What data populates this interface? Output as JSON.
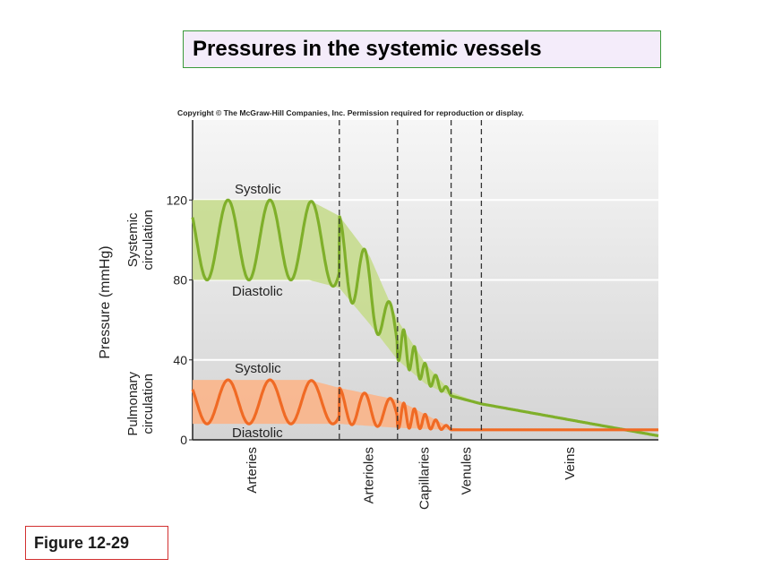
{
  "title": "Pressures in the systemic vessels",
  "figure_label": "Figure 12-29",
  "copyright": "Copyright © The McGraw-Hill Companies, Inc. Permission required for reproduction or display.",
  "chart_data": {
    "type": "line",
    "ylabel": "Pressure (mmHg)",
    "yticks": [
      0,
      40,
      80,
      120
    ],
    "ylim": [
      0,
      160
    ],
    "xlim": [
      0,
      100
    ],
    "grid": true,
    "regions": [
      {
        "label": "Arteries",
        "start": 0,
        "end": 31.5
      },
      {
        "label": "Arterioles",
        "start": 31.5,
        "end": 44
      },
      {
        "label": "Capillaries",
        "start": 44,
        "end": 55.5
      },
      {
        "label": "Venules",
        "start": 55.5,
        "end": 62
      },
      {
        "label": "Veins",
        "start": 62,
        "end": 100
      }
    ],
    "group_labels": {
      "systemic": "Systemic\ncirculation",
      "pulmonary": "Pulmonary\ncirculation"
    },
    "annotations": {
      "systemic_systolic": "Systolic",
      "systemic_diastolic": "Diastolic",
      "pulmonary_systolic": "Systolic",
      "pulmonary_diastolic": "Diastolic"
    },
    "colors": {
      "systemic_line": "#7faf2a",
      "systemic_band": "#c6dc8e",
      "pulmonary_line": "#f06a24",
      "pulmonary_band": "#fbb58a"
    },
    "series": [
      {
        "key": "systemic",
        "upper": [
          [
            0,
            120
          ],
          [
            25,
            120
          ],
          [
            31.5,
            112
          ],
          [
            38,
            92
          ],
          [
            44,
            60
          ],
          [
            50,
            38
          ],
          [
            55.5,
            24
          ],
          [
            62,
            18
          ],
          [
            100,
            2
          ]
        ],
        "lower": [
          [
            0,
            80
          ],
          [
            25,
            80
          ],
          [
            31.5,
            76
          ],
          [
            38,
            58
          ],
          [
            44,
            40
          ],
          [
            50,
            28
          ],
          [
            55.5,
            22
          ],
          [
            62,
            18
          ],
          [
            100,
            2
          ]
        ],
        "waves": 5
      },
      {
        "key": "pulmonary",
        "upper": [
          [
            0,
            30
          ],
          [
            25,
            30
          ],
          [
            31.5,
            26
          ],
          [
            44,
            20
          ],
          [
            55.5,
            6
          ],
          [
            62,
            5
          ],
          [
            100,
            5
          ]
        ],
        "lower": [
          [
            0,
            8
          ],
          [
            25,
            8
          ],
          [
            31.5,
            8
          ],
          [
            44,
            6
          ],
          [
            55.5,
            5
          ],
          [
            62,
            5
          ],
          [
            100,
            5
          ]
        ],
        "waves": 9
      }
    ]
  }
}
